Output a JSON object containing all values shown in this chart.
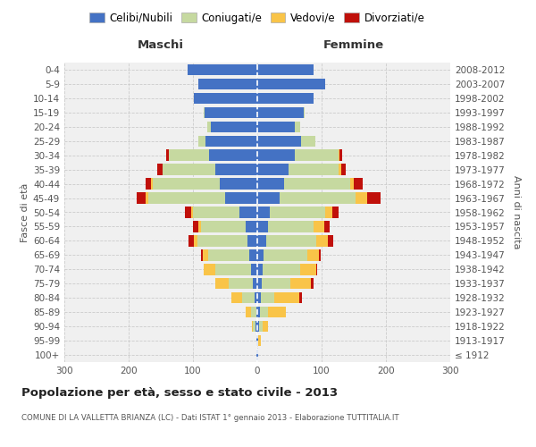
{
  "age_groups": [
    "100+",
    "95-99",
    "90-94",
    "85-89",
    "80-84",
    "75-79",
    "70-74",
    "65-69",
    "60-64",
    "55-59",
    "50-54",
    "45-49",
    "40-44",
    "35-39",
    "30-34",
    "25-29",
    "20-24",
    "15-19",
    "10-14",
    "5-9",
    "0-4"
  ],
  "birth_years": [
    "≤ 1912",
    "1913-1917",
    "1918-1922",
    "1923-1927",
    "1928-1932",
    "1933-1937",
    "1938-1942",
    "1943-1947",
    "1948-1952",
    "1953-1957",
    "1958-1962",
    "1963-1967",
    "1968-1972",
    "1973-1977",
    "1978-1982",
    "1983-1987",
    "1988-1992",
    "1993-1997",
    "1998-2002",
    "2003-2007",
    "2008-2012"
  ],
  "male_celibi": [
    1,
    1,
    3,
    2,
    4,
    7,
    10,
    12,
    15,
    18,
    28,
    50,
    58,
    65,
    75,
    80,
    72,
    82,
    98,
    92,
    108
  ],
  "male_coniugati": [
    0,
    1,
    4,
    8,
    20,
    38,
    55,
    65,
    78,
    70,
    72,
    120,
    105,
    82,
    62,
    12,
    6,
    2,
    0,
    0,
    0
  ],
  "male_vedovi": [
    0,
    0,
    2,
    8,
    16,
    20,
    18,
    8,
    6,
    4,
    3,
    3,
    2,
    0,
    0,
    0,
    0,
    0,
    0,
    0,
    0
  ],
  "male_divorziati": [
    0,
    0,
    0,
    0,
    0,
    0,
    0,
    2,
    8,
    8,
    10,
    15,
    8,
    8,
    5,
    0,
    0,
    0,
    0,
    0,
    0
  ],
  "female_celibi": [
    1,
    1,
    3,
    4,
    5,
    7,
    8,
    10,
    14,
    16,
    20,
    35,
    42,
    48,
    58,
    68,
    58,
    72,
    88,
    105,
    88
  ],
  "female_coniugati": [
    0,
    1,
    5,
    12,
    22,
    45,
    58,
    68,
    78,
    72,
    85,
    118,
    102,
    78,
    68,
    22,
    8,
    2,
    0,
    0,
    0
  ],
  "female_vedovi": [
    1,
    3,
    8,
    28,
    38,
    32,
    25,
    18,
    18,
    16,
    12,
    18,
    6,
    4,
    2,
    0,
    0,
    0,
    0,
    0,
    0
  ],
  "female_divorziati": [
    0,
    0,
    0,
    0,
    5,
    4,
    2,
    2,
    8,
    8,
    10,
    20,
    14,
    8,
    4,
    0,
    0,
    0,
    0,
    0,
    0
  ],
  "colors": {
    "celibi": "#4472c4",
    "coniugati": "#c6d9a0",
    "vedovi": "#f9c448",
    "divorziati": "#c0100a"
  },
  "title": "Popolazione per età, sesso e stato civile - 2013",
  "subtitle": "COMUNE DI LA VALLETTA BRIANZA (LC) - Dati ISTAT 1° gennaio 2013 - Elaborazione TUTTITALIA.IT",
  "xlabel_left": "Maschi",
  "xlabel_right": "Femmine",
  "ylabel_left": "Fasce di età",
  "ylabel_right": "Anni di nascita",
  "xlim": 300,
  "legend_labels": [
    "Celibi/Nubili",
    "Coniugati/e",
    "Vedovi/e",
    "Divorziati/e"
  ],
  "background_color": "#ffffff",
  "grid_color": "#cccccc",
  "bar_bg": "#f0f0f0"
}
